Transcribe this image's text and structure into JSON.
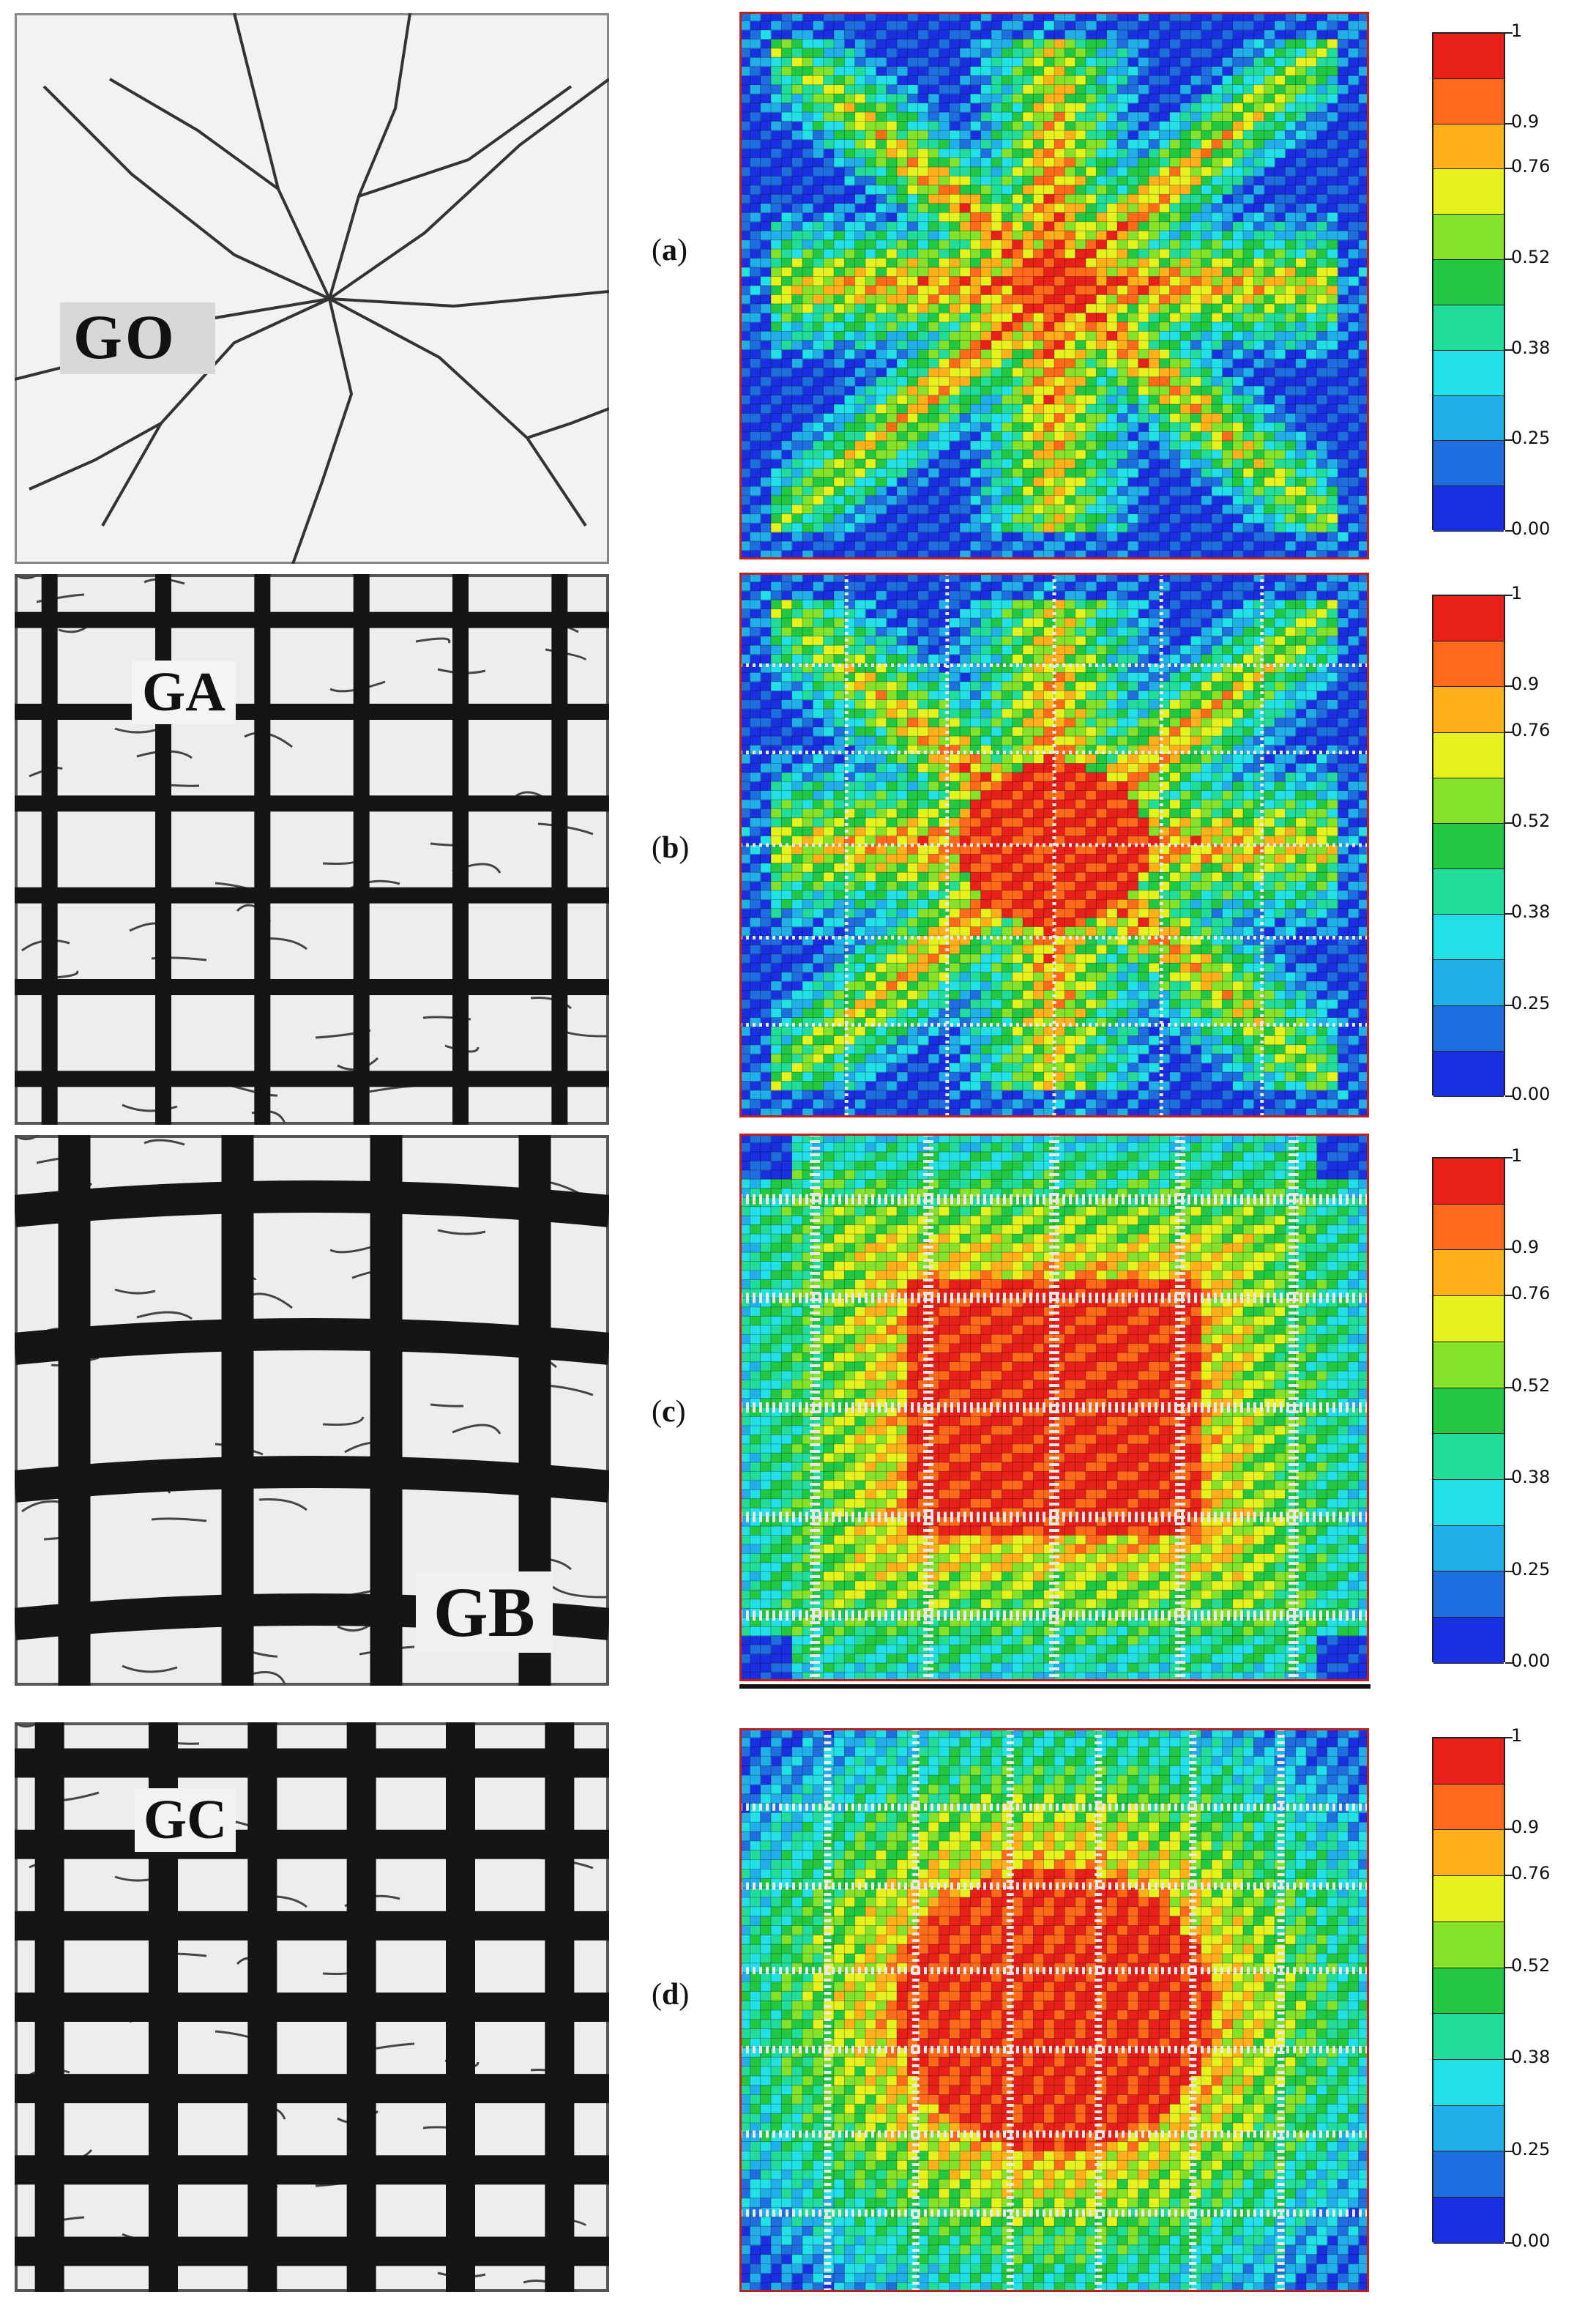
{
  "panels": [
    {
      "id": "a",
      "label_open": "(",
      "label_letter": "a",
      "label_close": ")",
      "specimen": "GO",
      "grid": "none"
    },
    {
      "id": "b",
      "label_open": "(",
      "label_letter": "b",
      "label_close": ")",
      "specimen": "GA",
      "grid": "regular"
    },
    {
      "id": "c",
      "label_open": "(",
      "label_letter": "c",
      "label_close": ")",
      "specimen": "GB",
      "grid": "wide"
    },
    {
      "id": "d",
      "label_open": "(",
      "label_letter": "d",
      "label_close": ")",
      "specimen": "GC",
      "grid": "dense"
    }
  ],
  "legend": {
    "ticks": [
      "1",
      "0.9",
      "0.76",
      "0.52",
      "0.38",
      "0.25",
      "0.00"
    ],
    "colors": [
      "#e8201a",
      "#ff6a1a",
      "#ffb01a",
      "#e6f21e",
      "#84e22a",
      "#22c742",
      "#22dd9a",
      "#22e0e6",
      "#22aee8",
      "#1f6ee0",
      "#1a2fe0"
    ]
  }
}
